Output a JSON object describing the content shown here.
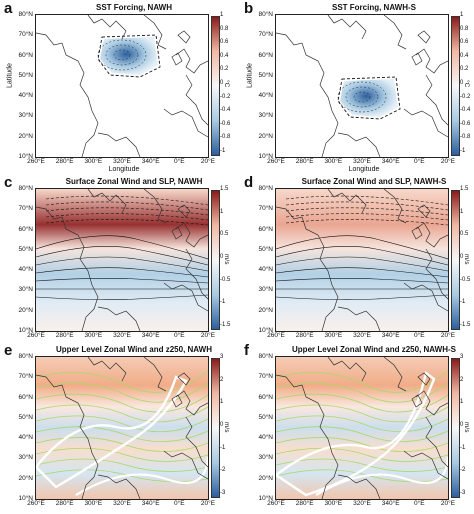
{
  "panels": [
    {
      "letter": "a",
      "title": "SST Forcing, NAWH",
      "ylabel": "Latitude",
      "xlabel": "Longitude",
      "unit": "°C",
      "cbar_ticks": [
        "1",
        "0.8",
        "0.6",
        "0.4",
        "0.2",
        "0",
        "-0.2",
        "-0.4",
        "-0.6",
        "-0.8",
        "-1"
      ],
      "colormap": "diverging-blue-red",
      "forcing_region": "subpolar North Atlantic"
    },
    {
      "letter": "b",
      "title": "SST Forcing, NAWH-S",
      "ylabel": "Latitude",
      "xlabel": "Longitude",
      "unit": "°C",
      "cbar_ticks": [
        "1",
        "0.8",
        "0.6",
        "0.4",
        "0.2",
        "0",
        "-0.2",
        "-0.4",
        "-0.6",
        "-0.8",
        "-1"
      ],
      "colormap": "diverging-blue-red",
      "forcing_region": "subtropical North Atlantic"
    },
    {
      "letter": "c",
      "title": "Surface Zonal Wind and SLP, NAWH",
      "ylabel": "",
      "xlabel": "",
      "unit": "m/s",
      "cbar_ticks": [
        "1.5",
        "1",
        "0.5",
        "0",
        "-0.5",
        "-1",
        "-1.5"
      ],
      "colormap": "diverging-blue-red"
    },
    {
      "letter": "d",
      "title": "Surface Zonal Wind and SLP, NAWH-S",
      "ylabel": "",
      "xlabel": "",
      "unit": "m/s",
      "cbar_ticks": [
        "1.5",
        "1",
        "0.5",
        "0",
        "-0.5",
        "-1",
        "-1.5"
      ],
      "colormap": "diverging-blue-red"
    },
    {
      "letter": "e",
      "title": "Upper Level Zonal Wind and z250, NAWH",
      "ylabel": "",
      "xlabel": "",
      "unit": "m/s",
      "cbar_ticks": [
        "3",
        "2",
        "1",
        "0",
        "-1",
        "-2",
        "-3"
      ],
      "colormap": "diverging-blue-red"
    },
    {
      "letter": "f",
      "title": "Upper Level Zonal Wind and z250, NAWH-S",
      "ylabel": "",
      "xlabel": "",
      "unit": "m/s",
      "cbar_ticks": [
        "3",
        "2",
        "1",
        "0",
        "-1",
        "-2",
        "-3"
      ],
      "colormap": "diverging-blue-red"
    }
  ],
  "lat_ticks": [
    "80°N",
    "70°N",
    "60°N",
    "50°N",
    "40°N",
    "30°N",
    "20°N",
    "10°N"
  ],
  "lon_ticks": [
    "260°E",
    "280°E",
    "300°E",
    "320°E",
    "340°E",
    "0°E",
    "20°E"
  ],
  "colors": {
    "neg_strong": "#2c5f9e",
    "neg_light": "#a9cbe3",
    "neutral": "#f7f7f7",
    "pos_light": "#f2b9a3",
    "pos_strong": "#8b1a1a",
    "contour_z250": "#a6d96a",
    "jet_line": "#ffffff"
  }
}
